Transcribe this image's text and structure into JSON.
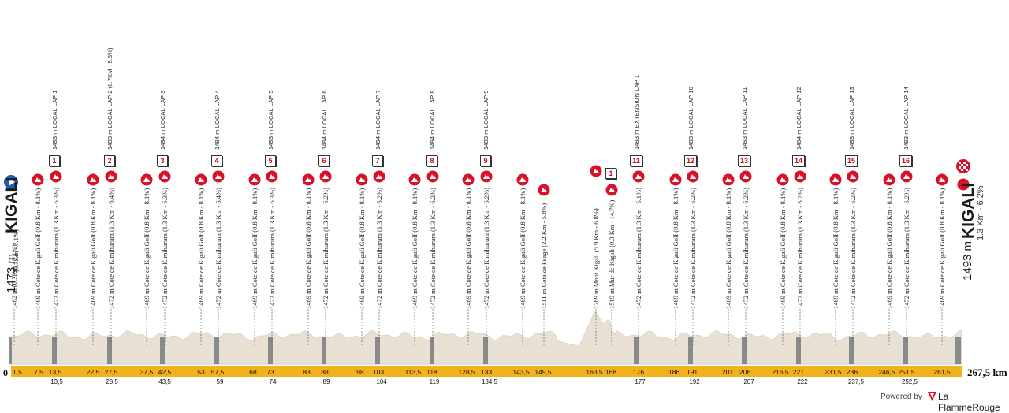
{
  "start": {
    "city": "KIGALI",
    "altitude": "1473 m",
    "note": "(0.3Km - 7.1%)",
    "note_prefix": "1462 m"
  },
  "finish": {
    "city": "KIGALI",
    "altitude": "1493 m",
    "sub": "1.3 Km - 6.2%"
  },
  "total_distance": "267,5 km",
  "zero_label": "0",
  "colors": {
    "climb_red": "#d8102a",
    "profile_fill": "#e8e0d2",
    "axis_yellow": "#f2b21b",
    "lap_marker": "#8a8a8a"
  },
  "km_top": [
    "1,5",
    "7,5",
    "13,5",
    "22,5",
    "27,5",
    "37,5",
    "42,5",
    "53",
    "57,5",
    "68",
    "73",
    "83",
    "88",
    "98",
    "103",
    "113,5",
    "118",
    "128,5",
    "133",
    "143,5",
    "149,5",
    "163,5",
    "168",
    "176",
    "186",
    "191",
    "201",
    "206",
    "216,5",
    "221",
    "231,5",
    "236",
    "246,5",
    "251,5",
    "261,5"
  ],
  "km_bottom": [
    "13,5",
    "28,5",
    "43,5",
    "59",
    "74",
    "89",
    "104",
    "119",
    "134,5",
    "177",
    "192",
    "207",
    "222",
    "237,5",
    "252,5"
  ],
  "labels": [
    "1462 m (0.3Km - 7.1%)",
    "1469 m Cote de Kigali Golf (0.8 Km - 8.1%)",
    "1472 m Cote de Kimihurura (1.3 Km - 6.3%)",
    "1469 m Cote de Kigali Golf (0.8 Km - 8.1%)",
    "1472 m Cote de Kimihurura (1.3 Km - 6.4%)",
    "1469 m Cote de Kigali Golf (0.8 Km - 8.1%)",
    "1472 m Cote de Kimihurura (1.3 Km - 6.3%)",
    "1469 m Cote de Kigali Golf (0.8 Km - 8.1%)",
    "1472 m Cote de Kimihurura (1.3 Km - 6.4%)",
    "1469 m Cote de Kigali Golf (0.8 Km - 8.1%)",
    "1472 m Cote de Kimihurura (1.3 Km - 6.3%)",
    "1469 m Cote de Kigali Golf (0.8 Km - 8.1%)",
    "1472 m Cote de Kimihurura (1.3 Km - 6.2%)",
    "1469 m Cote de Kigali Golf (0.8 Km - 8.1%)",
    "1472 m Cote de Kimihurura (1.3 Km - 6.2%)",
    "1469 m Cote de Kigali Golf (0.8 Km - 8.1%)",
    "1472 m Cote de Kimihurura (1.3 Km - 6.2%)",
    "1469 m Cote de Kigali Golf (0.8 Km - 8.1%)",
    "1472 m Cote de Kimihurura (1.3 Km - 6.2%)",
    "1469 m Cote de Kigali Golf (0.8 Km - 8.1%)",
    "1511 m Cote de Peage (2.2 Km - 5.8%)",
    "1789 m Mont Kigali (5.9 Km - 6.8%)",
    "1519 m Mur de Kigali (0.3 Km - 14.7%)",
    "1472 m Cote de Kimihurura (1.3 Km - 6.1%)",
    "1469 m Cote de Kigali Golf (0.8 Km - 8.1%)",
    "1472 m Cote de Kimihurura (1.3 Km - 6.2%)",
    "1469 m Cote de Kigali Golf (0.8 Km - 8.1%)",
    "1472 m Cote de Kimihurura (1.3 Km - 6.2%)",
    "1469 m Cote de Kigali Golf (0.8 Km - 8.1%)",
    "1472 m Cote de Kimihurura (1.3 Km - 6.2%)",
    "1469 m Cote de Kigali Golf (0.8 Km - 8.1%)",
    "1472 m Cote de Kimihurura (1.3 Km - 6.2%)",
    "1469 m Cote de Kigali Golf (0.8 Km - 8.1%)",
    "1472 m Cote de Kimihurura (1.3 Km - 6.2%)",
    "1469 m Cote de Kigali Golf (0.8 Km - 8.1%)"
  ],
  "laps": [
    {
      "badge": "1",
      "text": "1493 m LOCAL LAP 1"
    },
    {
      "badge": "2",
      "text": "1493 m LOCAL LAP 2 (0.7KM - 5.5%)"
    },
    {
      "badge": "3",
      "text": "1494 m LOCAL LAP 3"
    },
    {
      "badge": "4",
      "text": "1494 m LOCAL LAP 4"
    },
    {
      "badge": "5",
      "text": "1493 m LOCAL LAP 5"
    },
    {
      "badge": "6",
      "text": "1494 m LOCAL LAP 6"
    },
    {
      "badge": "7",
      "text": "1494 m LOCAL LAP 7"
    },
    {
      "badge": "8",
      "text": "1494 m LOCAL LAP 8"
    },
    {
      "badge": "9",
      "text": "1493 m LOCAL LAP 9"
    },
    {
      "badge": "11",
      "text": "1493 m EXTENSION LAP 1"
    },
    {
      "badge": "12",
      "text": "1493 m LOCAL LAP 10"
    },
    {
      "badge": "13",
      "text": "1493 m LOCAL LAP 11"
    },
    {
      "badge": "14",
      "text": "1494 m LOCAL LAP 12"
    },
    {
      "badge": "15",
      "text": "1493 m LOCAL LAP 13"
    },
    {
      "badge": "16",
      "text": "1493 m LOCAL LAP 14"
    }
  ],
  "sprint_badge": "1",
  "footer": {
    "powered": "Powered by",
    "brand": "La FlammeRouge"
  }
}
